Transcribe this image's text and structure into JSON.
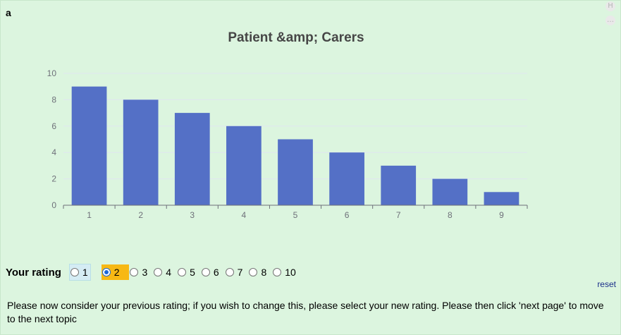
{
  "question": {
    "label": "a"
  },
  "side_icons": {
    "history": "H",
    "comment": "…"
  },
  "chart_data": {
    "type": "bar",
    "title": "Patient &amp; Carers",
    "categories": [
      "1",
      "2",
      "3",
      "4",
      "5",
      "6",
      "7",
      "8",
      "9"
    ],
    "values": [
      9,
      8,
      7,
      6,
      5,
      4,
      3,
      2,
      1
    ],
    "y_ticks": [
      "0",
      "2",
      "4",
      "6",
      "8",
      "10"
    ],
    "ylim": [
      0,
      10
    ],
    "xlabel": "",
    "ylabel": "",
    "bar_color": "#5470c6",
    "grid": true
  },
  "rating": {
    "label": "Your rating",
    "options": [
      "1",
      "2",
      "3",
      "4",
      "5",
      "6",
      "7",
      "8",
      "10"
    ],
    "selected": "2",
    "selected_color": "#f7b814"
  },
  "reset_label": "reset",
  "instructions": "Please now consider your previous rating; if you wish to change this, please select your new rating. Please then click 'next page' to move to the next topic"
}
